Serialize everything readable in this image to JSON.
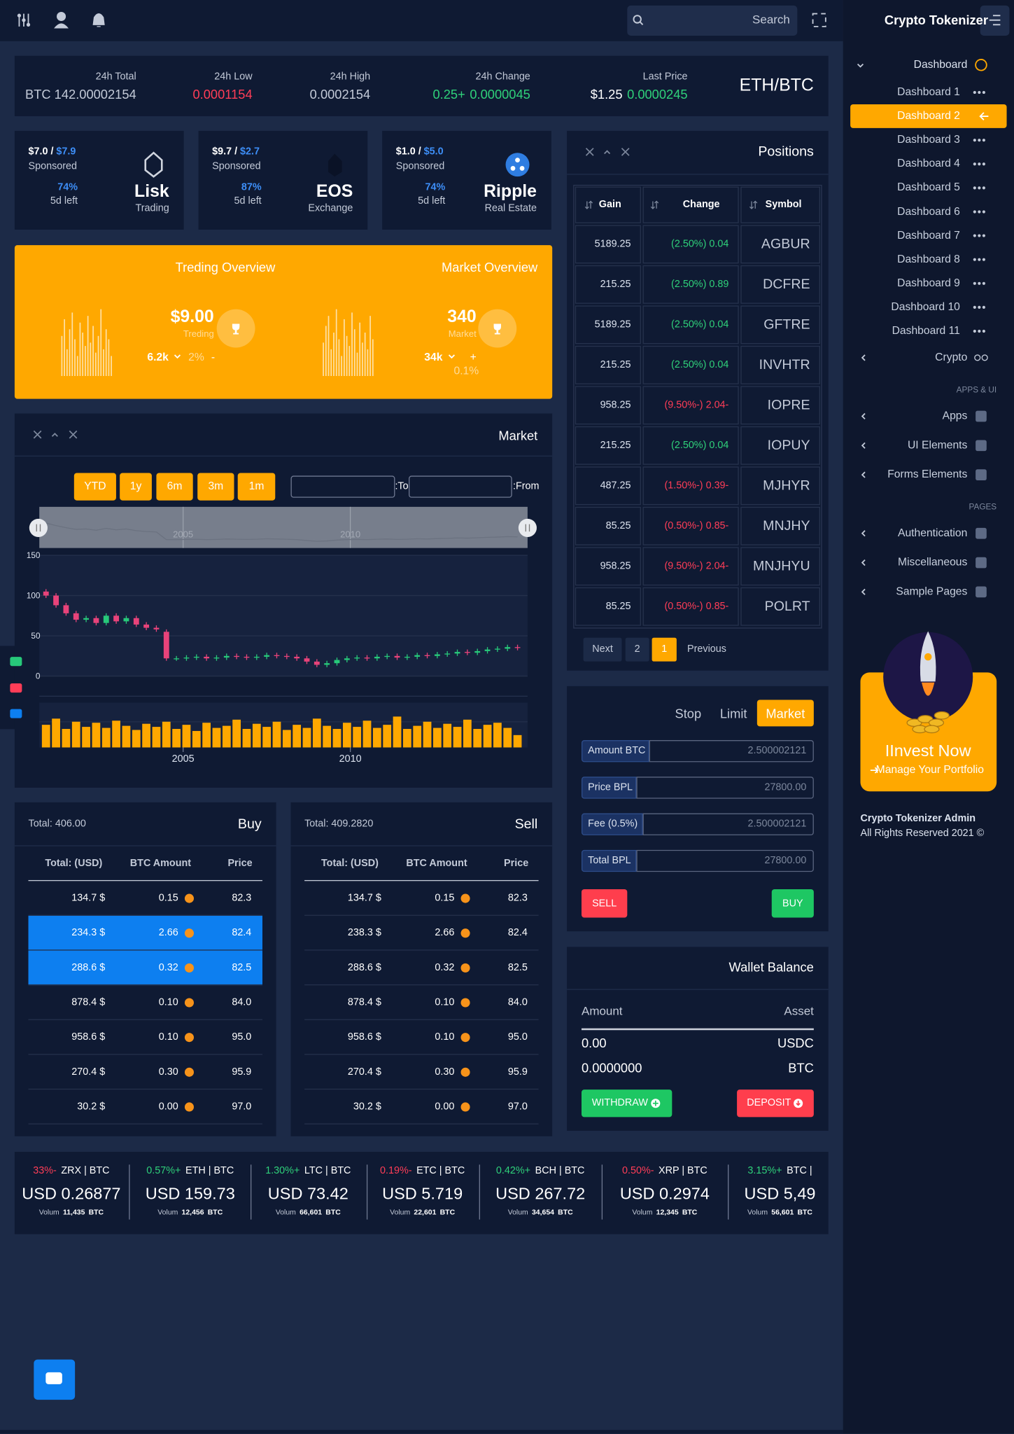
{
  "topbar": {
    "search_placeholder": "Search"
  },
  "sidebar": {
    "brand": "Crypto Tokenizer",
    "dashboard": "Dashboard",
    "dashboards": [
      "Dashboard 1",
      "Dashboard 2",
      "Dashboard 3",
      "Dashboard 4",
      "Dashboard 5",
      "Dashboard 6",
      "Dashboard 7",
      "Dashboard 8",
      "Dashboard 9",
      "Dashboard 10",
      "Dashboard 11"
    ],
    "active_dashboard": 1,
    "crypto": "Crypto",
    "sections": [
      {
        "title": "APPS & UI",
        "items": [
          "Apps",
          "UI Elements",
          "Forms Elements"
        ]
      },
      {
        "title": "PAGES",
        "items": [
          "Authentication",
          "Miscellaneous",
          "Sample Pages"
        ]
      }
    ],
    "promo": {
      "title": "IInvest Now",
      "link": "Manage Your Portfolio"
    },
    "footer": {
      "name": "Crypto Tokenizer Admin",
      "copyright": "All Rights Reserved 2021 ©"
    }
  },
  "market_header": {
    "stats": [
      {
        "label": "24h Total",
        "value": "BTC 142.00002154"
      },
      {
        "label": "24h Low",
        "value": "0.0001154"
      },
      {
        "label": "24h High",
        "value": "0.0002154"
      },
      {
        "label": "24h Change",
        "value": "0.25+",
        "sub": "0.0000045"
      },
      {
        "label": "Last Price",
        "value": "$1.25",
        "sub": "0.0000245"
      }
    ],
    "pair": "ETH/BTC"
  },
  "coin_cards": [
    {
      "price": "$7.0 /",
      "target": "$7.9",
      "tag": "Sponsored",
      "percent": "74%",
      "left": "5d left",
      "name": "Lisk",
      "type": "Trading"
    },
    {
      "price": "$9.7 /",
      "target": "$2.7",
      "tag": "Sponsored",
      "percent": "87%",
      "left": "5d left",
      "name": "EOS",
      "type": "Exchange"
    },
    {
      "price": "$1.0 /",
      "target": "$5.0",
      "tag": "Sponsored",
      "percent": "74%",
      "left": "5d left",
      "name": "Ripple",
      "type": "Real Estate"
    }
  ],
  "overview": {
    "bar_ylim": [
      0,
      100
    ],
    "trading": {
      "title": "Treding Overview",
      "value": "$9.00",
      "label": "Treding",
      "stat": "6.2k",
      "pct": "2%",
      "sign": "-",
      "bars": [
        60,
        85,
        40,
        70,
        95,
        55,
        30,
        80,
        65,
        45,
        90,
        50,
        75,
        35,
        60,
        100,
        40,
        70,
        55,
        30
      ]
    },
    "market": {
      "title": "Market Overview",
      "value": "340",
      "label": "Market",
      "stat": "34k",
      "sign": "+",
      "pct": "0.1%",
      "bars": [
        50,
        75,
        90,
        40,
        65,
        100,
        55,
        30,
        85,
        60,
        45,
        95,
        70,
        35,
        80,
        50,
        65,
        40,
        90,
        55
      ]
    }
  },
  "market": {
    "title": "Market",
    "ranges": [
      "YTD",
      "1y",
      "6m",
      "3m",
      "1m"
    ],
    "to_label": ":To",
    "from_label": ":From",
    "chart": {
      "type": "candlestick",
      "xlim": [
        2000.7,
        2015.3
      ],
      "xticks": [
        2005,
        2010
      ],
      "ylim": [
        0,
        150
      ],
      "yticks": [
        0,
        50,
        100,
        150
      ],
      "volume_ylim": [
        0,
        40
      ],
      "x": [
        2000.9,
        2001.2,
        2001.5,
        2001.8,
        2002.1,
        2002.4,
        2002.7,
        2003.0,
        2003.3,
        2003.6,
        2003.9,
        2004.2,
        2004.5,
        2004.8,
        2005.1,
        2005.4,
        2005.7,
        2006.0,
        2006.3,
        2006.6,
        2006.9,
        2007.2,
        2007.5,
        2007.8,
        2008.1,
        2008.4,
        2008.7,
        2009.0,
        2009.3,
        2009.6,
        2009.9,
        2010.2,
        2010.5,
        2010.8,
        2011.1,
        2011.4,
        2011.7,
        2012.0,
        2012.3,
        2012.6,
        2012.9,
        2013.2,
        2013.5,
        2013.8,
        2014.1,
        2014.4,
        2014.7,
        2015.0
      ],
      "open": [
        105,
        100,
        88,
        78,
        70,
        72,
        66,
        75,
        68,
        72,
        64,
        60,
        55,
        22,
        22,
        23,
        24,
        22,
        23,
        25,
        24,
        23,
        24,
        26,
        25,
        24,
        22,
        18,
        14,
        16,
        20,
        22,
        23,
        22,
        24,
        25,
        23,
        24,
        26,
        25,
        27,
        28,
        30,
        29,
        31,
        33,
        34,
        36
      ],
      "high": [
        108,
        103,
        91,
        81,
        75,
        75,
        78,
        78,
        75,
        75,
        67,
        63,
        58,
        25,
        26,
        27,
        27,
        26,
        28,
        28,
        27,
        27,
        29,
        29,
        28,
        27,
        25,
        21,
        19,
        23,
        25,
        26,
        26,
        27,
        28,
        28,
        27,
        29,
        29,
        30,
        31,
        33,
        33,
        34,
        36,
        37,
        39,
        39
      ],
      "low": [
        97,
        85,
        75,
        67,
        67,
        63,
        63,
        65,
        65,
        61,
        57,
        55,
        19,
        19,
        19,
        20,
        19,
        19,
        20,
        21,
        20,
        20,
        21,
        22,
        21,
        19,
        15,
        11,
        11,
        13,
        17,
        19,
        19,
        19,
        21,
        20,
        20,
        21,
        22,
        22,
        24,
        25,
        26,
        26,
        28,
        30,
        31,
        32
      ],
      "close": [
        100,
        88,
        78,
        70,
        72,
        66,
        75,
        68,
        72,
        64,
        60,
        58,
        22,
        22,
        23,
        24,
        22,
        23,
        25,
        24,
        23,
        24,
        26,
        25,
        24,
        22,
        18,
        14,
        16,
        20,
        22,
        23,
        22,
        24,
        25,
        23,
        24,
        26,
        25,
        27,
        28,
        30,
        29,
        31,
        33,
        34,
        36,
        35
      ],
      "volume": [
        22,
        28,
        18,
        25,
        20,
        24,
        19,
        26,
        21,
        17,
        23,
        20,
        25,
        18,
        22,
        16,
        24,
        19,
        21,
        27,
        18,
        23,
        20,
        25,
        17,
        22,
        19,
        28,
        21,
        18,
        24,
        20,
        26,
        19,
        22,
        30,
        18,
        21,
        25,
        19,
        23,
        20,
        27,
        18,
        22,
        24,
        19,
        12
      ]
    }
  },
  "positions": {
    "title": "Positions",
    "headers": [
      "Gain",
      "Change",
      "Symbol"
    ],
    "rows": [
      [
        "5189.25",
        "(2.50%) 0.04",
        "AGBUR"
      ],
      [
        "215.25",
        "(2.50%) 0.89",
        "DCFRE"
      ],
      [
        "5189.25",
        "(2.50%) 0.04",
        "GFTRE"
      ],
      [
        "215.25",
        "(2.50%) 0.04",
        "INVHTR"
      ],
      [
        "958.25",
        "(9.50%-) 2.04-",
        "IOPRE"
      ],
      [
        "215.25",
        "(2.50%) 0.04",
        "IOPUY"
      ],
      [
        "487.25",
        "(1.50%-) 0.39-",
        "MJHYR"
      ],
      [
        "85.25",
        "(0.50%-) 0.85-",
        "MNJHY"
      ],
      [
        "958.25",
        "(9.50%-) 2.04-",
        "MNJHYU"
      ],
      [
        "85.25",
        "(0.50%-) 0.85-",
        "POLRT"
      ]
    ],
    "pagination": [
      "Next",
      "2",
      "1",
      "Previous"
    ],
    "active_page": 2
  },
  "order": {
    "tabs": [
      "Stop",
      "Limit",
      "Market"
    ],
    "active_tab": 2,
    "fields": [
      {
        "label": "Amount BTC",
        "value": "2.500002121"
      },
      {
        "label": "Price BPL",
        "value": "27800.00"
      },
      {
        "label": "Fee (0.5%)",
        "value": "2.500002121"
      },
      {
        "label": "Total BPL",
        "value": "27800.00"
      }
    ],
    "sell": "SELL",
    "buy": "BUY"
  },
  "wallet": {
    "title": "Wallet Balance",
    "headers": [
      "Amount",
      "Asset"
    ],
    "rows": [
      [
        "0.00",
        "USDC"
      ],
      [
        "0.0000000",
        "BTC"
      ]
    ],
    "withdraw": "WITHDRAW",
    "deposit": "DEPOSIT"
  },
  "order_books": [
    {
      "total": "Total: 406.00",
      "title": "Buy",
      "headers": [
        "Total: (USD)",
        "BTC Amount",
        "Price"
      ],
      "highlighted_rows": [
        1,
        2
      ],
      "rows": [
        [
          "134.7 $",
          "0.15",
          "82.3"
        ],
        [
          "234.3 $",
          "2.66",
          "82.4"
        ],
        [
          "288.6 $",
          "0.32",
          "82.5"
        ],
        [
          "878.4 $",
          "0.10",
          "84.0"
        ],
        [
          "958.6 $",
          "0.10",
          "95.0"
        ],
        [
          "270.4 $",
          "0.30",
          "95.9"
        ],
        [
          "30.2 $",
          "0.00",
          "97.0"
        ]
      ]
    },
    {
      "total": "Total: 409.2820",
      "title": "Sell",
      "headers": [
        "Total: (USD)",
        "BTC Amount",
        "Price"
      ],
      "highlighted_rows": [],
      "rows": [
        [
          "134.7 $",
          "0.15",
          "82.3"
        ],
        [
          "238.3 $",
          "2.66",
          "82.4"
        ],
        [
          "288.6 $",
          "0.32",
          "82.5"
        ],
        [
          "878.4 $",
          "0.10",
          "84.0"
        ],
        [
          "958.6 $",
          "0.10",
          "95.0"
        ],
        [
          "270.4 $",
          "0.30",
          "95.9"
        ],
        [
          "30.2 $",
          "0.00",
          "97.0"
        ]
      ]
    }
  ],
  "ticker": [
    {
      "change": "33%-",
      "pair": "ZRX | BTC",
      "price": "USD 0.26877",
      "volume_label": "Volum",
      "volume": "11,435",
      "unit": "BTC"
    },
    {
      "change": "0.57%+",
      "pair": "ETH | BTC",
      "price": "USD 159.73",
      "volume_label": "Volum",
      "volume": "12,456",
      "unit": "BTC"
    },
    {
      "change": "1.30%+",
      "pair": "LTC | BTC",
      "price": "USD 73.42",
      "volume_label": "Volum",
      "volume": "66,601",
      "unit": "BTC"
    },
    {
      "change": "0.19%-",
      "pair": "ETC | BTC",
      "price": "USD 5.719",
      "volume_label": "Volum",
      "volume": "22,601",
      "unit": "BTC"
    },
    {
      "change": "0.42%+",
      "pair": "BCH | BTC",
      "price": "USD 267.72",
      "volume_label": "Volum",
      "volume": "34,654",
      "unit": "BTC"
    },
    {
      "change": "0.50%-",
      "pair": "XRP | BTC",
      "price": "USD 0.2974",
      "volume_label": "Volum",
      "volume": "12,345",
      "unit": "BTC"
    },
    {
      "change": "3.15%+",
      "pair": "BTC |",
      "price": "USD 5,49",
      "volume_label": "Volum",
      "volume": "56,601",
      "unit": "BTC"
    }
  ]
}
